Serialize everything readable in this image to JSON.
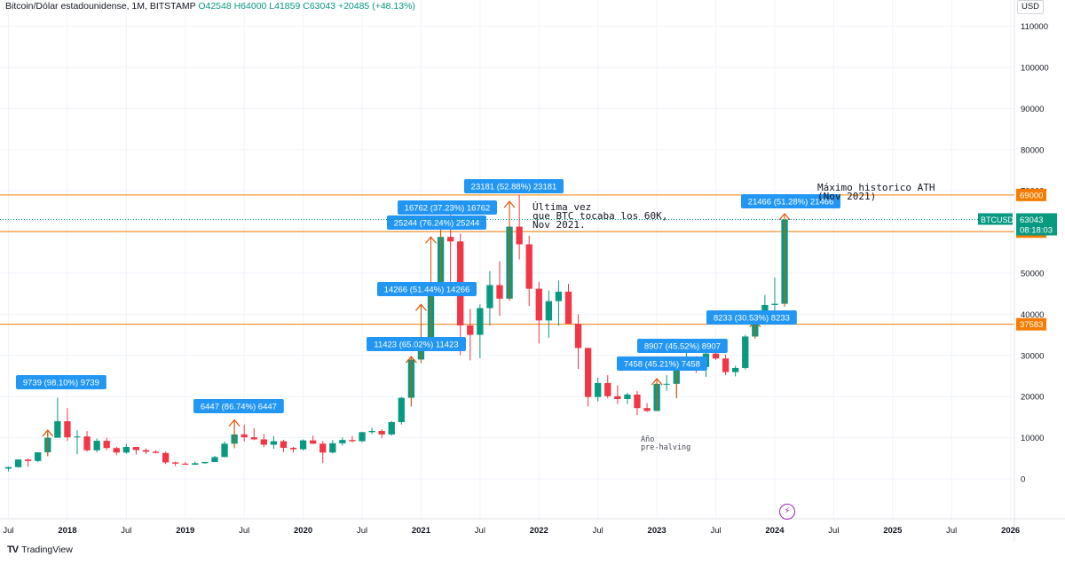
{
  "header": {
    "title": "Bitcoin/Dólar estadounidense, 1M, BITSTAMP",
    "ohlc": "O42548 H64000 L41859 C63043 +20485 (+48.13%)"
  },
  "currency_button": "USD",
  "branding": "TradingView",
  "colors": {
    "up": "#089981",
    "down": "#f23645",
    "label_bg": "#2196f3",
    "level_line": "#f57c00",
    "arrow": "#e65100",
    "price_tag": "#089981"
  },
  "price_tags": {
    "symbol": "BTCUSD",
    "last": "63043",
    "countdown": "08:18:03"
  },
  "icons": {
    "bolt": "lightning-icon"
  },
  "annotations": [
    {
      "id": "note-last-60k",
      "lines": [
        "Última vez",
        "que BTC tocaba los 60K,",
        "Nov 2021."
      ]
    },
    {
      "id": "note-ath",
      "lines": [
        "Máximo historico ATH",
        "(Nov 2021)"
      ]
    },
    {
      "id": "note-prehalving",
      "lines": [
        "Año",
        "pre-halving"
      ]
    }
  ],
  "chart_data": {
    "type": "candlestick",
    "interval": "1M",
    "exchange": "BITSTAMP",
    "y_axis": {
      "ticks": [
        0,
        10000,
        20000,
        30000,
        40000,
        50000,
        60000,
        70000,
        80000,
        90000,
        100000,
        110000
      ],
      "tick_labels": [
        "0",
        "10000",
        "20000",
        "30000",
        "40000",
        "50000",
        "60000",
        "70000",
        "80000",
        "90000",
        "100000",
        "110000"
      ],
      "scale": "linear"
    },
    "x_axis": {
      "tick_labels": [
        "Jul",
        "2018",
        "Jul",
        "2019",
        "Jul",
        "2020",
        "Jul",
        "2021",
        "Jul",
        "2022",
        "Jul",
        "2023",
        "Jul",
        "2024",
        "Jul",
        "2025",
        "Jul",
        "2026"
      ],
      "tick_months": [
        "2017-07",
        "2018-01",
        "2018-07",
        "2019-01",
        "2019-07",
        "2020-01",
        "2020-07",
        "2021-01",
        "2021-07",
        "2022-01",
        "2022-07",
        "2023-01",
        "2023-07",
        "2024-01",
        "2024-07",
        "2025-01",
        "2025-07",
        "2026-01"
      ]
    },
    "horizontal_levels": [
      {
        "price": 69000,
        "label": "69000"
      },
      {
        "price": 60092,
        "label": "60092"
      },
      {
        "price": 37583,
        "label": "37583"
      }
    ],
    "measure_labels": [
      {
        "text": "9739 (98.10%) 9739",
        "month": "2017-11"
      },
      {
        "text": "6447 (86.74%) 6447",
        "month": "2019-06"
      },
      {
        "text": "11423 (65.02%) 11423",
        "month": "2020-12"
      },
      {
        "text": "14266 (51.44%) 14266",
        "month": "2021-01"
      },
      {
        "text": "25244 (76.24%) 25244",
        "month": "2021-02"
      },
      {
        "text": "16762 (37.23%) 16762",
        "month": "2021-03"
      },
      {
        "text": "23181 (52.88%) 23181",
        "month": "2021-10"
      },
      {
        "text": "7458 (45.21%) 7458",
        "month": "2023-01"
      },
      {
        "text": "8907 (45.52%) 8907",
        "month": "2023-03"
      },
      {
        "text": "8233 (30.53%) 8233",
        "month": "2023-11"
      },
      {
        "text": "21466 (51.28%) 21466",
        "month": "2024-02"
      }
    ],
    "candles": [
      {
        "m": "2017-07",
        "o": 2480,
        "h": 2950,
        "l": 1850,
        "c": 2850
      },
      {
        "m": "2017-08",
        "o": 2850,
        "h": 4750,
        "l": 2700,
        "c": 4700
      },
      {
        "m": "2017-09",
        "o": 4700,
        "h": 4950,
        "l": 2970,
        "c": 4350
      },
      {
        "m": "2017-10",
        "o": 4350,
        "h": 6450,
        "l": 4100,
        "c": 6450
      },
      {
        "m": "2017-11",
        "o": 6450,
        "h": 11400,
        "l": 5500,
        "c": 10000
      },
      {
        "m": "2017-12",
        "o": 10000,
        "h": 19666,
        "l": 10000,
        "c": 14000
      },
      {
        "m": "2018-01",
        "o": 14000,
        "h": 17200,
        "l": 9200,
        "c": 10100
      },
      {
        "m": "2018-02",
        "o": 10100,
        "h": 11800,
        "l": 6000,
        "c": 10300
      },
      {
        "m": "2018-03",
        "o": 10300,
        "h": 11600,
        "l": 6600,
        "c": 6950
      },
      {
        "m": "2018-04",
        "o": 6950,
        "h": 9800,
        "l": 6450,
        "c": 9250
      },
      {
        "m": "2018-05",
        "o": 9250,
        "h": 10000,
        "l": 7000,
        "c": 7500
      },
      {
        "m": "2018-06",
        "o": 7500,
        "h": 7800,
        "l": 5750,
        "c": 6400
      },
      {
        "m": "2018-07",
        "o": 6400,
        "h": 8500,
        "l": 6100,
        "c": 7750
      },
      {
        "m": "2018-08",
        "o": 7750,
        "h": 7800,
        "l": 5900,
        "c": 7000
      },
      {
        "m": "2018-09",
        "o": 7000,
        "h": 7400,
        "l": 6100,
        "c": 6600
      },
      {
        "m": "2018-10",
        "o": 6600,
        "h": 7000,
        "l": 6200,
        "c": 6300
      },
      {
        "m": "2018-11",
        "o": 6300,
        "h": 6600,
        "l": 3600,
        "c": 4000
      },
      {
        "m": "2018-12",
        "o": 4000,
        "h": 4200,
        "l": 3100,
        "c": 3700
      },
      {
        "m": "2019-01",
        "o": 3700,
        "h": 4100,
        "l": 3400,
        "c": 3450
      },
      {
        "m": "2019-02",
        "o": 3450,
        "h": 4200,
        "l": 3400,
        "c": 3800
      },
      {
        "m": "2019-03",
        "o": 3800,
        "h": 4100,
        "l": 3700,
        "c": 4100
      },
      {
        "m": "2019-04",
        "o": 4100,
        "h": 5600,
        "l": 4050,
        "c": 5300
      },
      {
        "m": "2019-05",
        "o": 5300,
        "h": 9100,
        "l": 5300,
        "c": 8550
      },
      {
        "m": "2019-06",
        "o": 8550,
        "h": 13880,
        "l": 7450,
        "c": 10800
      },
      {
        "m": "2019-07",
        "o": 10800,
        "h": 13200,
        "l": 9100,
        "c": 10100
      },
      {
        "m": "2019-08",
        "o": 10100,
        "h": 12300,
        "l": 9400,
        "c": 9600
      },
      {
        "m": "2019-09",
        "o": 9600,
        "h": 10900,
        "l": 7700,
        "c": 8300
      },
      {
        "m": "2019-10",
        "o": 8300,
        "h": 10400,
        "l": 7300,
        "c": 9150
      },
      {
        "m": "2019-11",
        "o": 9150,
        "h": 9500,
        "l": 6500,
        "c": 7550
      },
      {
        "m": "2019-12",
        "o": 7550,
        "h": 7750,
        "l": 6400,
        "c": 7200
      },
      {
        "m": "2020-01",
        "o": 7200,
        "h": 9600,
        "l": 6850,
        "c": 9350
      },
      {
        "m": "2020-02",
        "o": 9350,
        "h": 10500,
        "l": 8450,
        "c": 8550
      },
      {
        "m": "2020-03",
        "o": 8550,
        "h": 9200,
        "l": 3850,
        "c": 6400
      },
      {
        "m": "2020-04",
        "o": 6400,
        "h": 9450,
        "l": 6150,
        "c": 8650
      },
      {
        "m": "2020-05",
        "o": 8650,
        "h": 10070,
        "l": 8100,
        "c": 9450
      },
      {
        "m": "2020-06",
        "o": 9450,
        "h": 10400,
        "l": 8900,
        "c": 9150
      },
      {
        "m": "2020-07",
        "o": 9150,
        "h": 11450,
        "l": 8950,
        "c": 11350
      },
      {
        "m": "2020-08",
        "o": 11350,
        "h": 12450,
        "l": 10900,
        "c": 11650
      },
      {
        "m": "2020-09",
        "o": 11650,
        "h": 12050,
        "l": 9900,
        "c": 10800
      },
      {
        "m": "2020-10",
        "o": 10800,
        "h": 14100,
        "l": 10500,
        "c": 13800
      },
      {
        "m": "2020-11",
        "o": 13800,
        "h": 19900,
        "l": 13200,
        "c": 19700
      },
      {
        "m": "2020-12",
        "o": 19700,
        "h": 29300,
        "l": 17600,
        "c": 29000
      },
      {
        "m": "2021-01",
        "o": 29000,
        "h": 41950,
        "l": 28100,
        "c": 33100
      },
      {
        "m": "2021-02",
        "o": 33100,
        "h": 58350,
        "l": 32300,
        "c": 45200
      },
      {
        "m": "2021-03",
        "o": 45200,
        "h": 61800,
        "l": 44900,
        "c": 58800
      },
      {
        "m": "2021-04",
        "o": 58800,
        "h": 64900,
        "l": 47000,
        "c": 57700
      },
      {
        "m": "2021-05",
        "o": 57700,
        "h": 59600,
        "l": 30000,
        "c": 37300
      },
      {
        "m": "2021-06",
        "o": 37300,
        "h": 41300,
        "l": 28800,
        "c": 35000
      },
      {
        "m": "2021-07",
        "o": 35000,
        "h": 42400,
        "l": 29300,
        "c": 41500
      },
      {
        "m": "2021-08",
        "o": 41500,
        "h": 50500,
        "l": 37300,
        "c": 47100
      },
      {
        "m": "2021-09",
        "o": 47100,
        "h": 52900,
        "l": 39600,
        "c": 43800
      },
      {
        "m": "2021-10",
        "o": 43800,
        "h": 67000,
        "l": 43300,
        "c": 61300
      },
      {
        "m": "2021-11",
        "o": 61300,
        "h": 69000,
        "l": 53300,
        "c": 57000
      },
      {
        "m": "2021-12",
        "o": 57000,
        "h": 59100,
        "l": 42000,
        "c": 46200
      },
      {
        "m": "2022-01",
        "o": 46200,
        "h": 47900,
        "l": 32900,
        "c": 38500
      },
      {
        "m": "2022-02",
        "o": 38500,
        "h": 45800,
        "l": 34300,
        "c": 43200
      },
      {
        "m": "2022-03",
        "o": 43200,
        "h": 48200,
        "l": 37200,
        "c": 45500
      },
      {
        "m": "2022-04",
        "o": 45500,
        "h": 47400,
        "l": 37700,
        "c": 37700
      },
      {
        "m": "2022-05",
        "o": 37700,
        "h": 40000,
        "l": 26700,
        "c": 31800
      },
      {
        "m": "2022-06",
        "o": 31800,
        "h": 31900,
        "l": 17600,
        "c": 19900
      },
      {
        "m": "2022-07",
        "o": 19900,
        "h": 24600,
        "l": 18800,
        "c": 23300
      },
      {
        "m": "2022-08",
        "o": 23300,
        "h": 25200,
        "l": 19600,
        "c": 20100
      },
      {
        "m": "2022-09",
        "o": 20100,
        "h": 22700,
        "l": 18200,
        "c": 19400
      },
      {
        "m": "2022-10",
        "o": 19400,
        "h": 20900,
        "l": 18200,
        "c": 20500
      },
      {
        "m": "2022-11",
        "o": 20500,
        "h": 21400,
        "l": 15500,
        "c": 17200
      },
      {
        "m": "2022-12",
        "o": 17200,
        "h": 18400,
        "l": 16300,
        "c": 16500
      },
      {
        "m": "2023-01",
        "o": 16500,
        "h": 23900,
        "l": 16500,
        "c": 23100
      },
      {
        "m": "2023-02",
        "o": 23100,
        "h": 25200,
        "l": 21400,
        "c": 23100
      },
      {
        "m": "2023-03",
        "o": 23100,
        "h": 29200,
        "l": 19600,
        "c": 28450
      },
      {
        "m": "2023-04",
        "o": 28450,
        "h": 31000,
        "l": 26900,
        "c": 29250
      },
      {
        "m": "2023-05",
        "o": 29250,
        "h": 29800,
        "l": 25800,
        "c": 27200
      },
      {
        "m": "2023-06",
        "o": 27200,
        "h": 31400,
        "l": 24800,
        "c": 30450
      },
      {
        "m": "2023-07",
        "o": 30450,
        "h": 31800,
        "l": 28900,
        "c": 29250
      },
      {
        "m": "2023-08",
        "o": 29250,
        "h": 30200,
        "l": 25200,
        "c": 25950
      },
      {
        "m": "2023-09",
        "o": 25950,
        "h": 27500,
        "l": 24900,
        "c": 26950
      },
      {
        "m": "2023-10",
        "o": 26950,
        "h": 35000,
        "l": 26600,
        "c": 34600
      },
      {
        "m": "2023-11",
        "o": 34600,
        "h": 38000,
        "l": 34100,
        "c": 37700
      },
      {
        "m": "2023-12",
        "o": 37700,
        "h": 44700,
        "l": 37600,
        "c": 42250
      },
      {
        "m": "2024-01",
        "o": 42250,
        "h": 48950,
        "l": 38500,
        "c": 42550
      },
      {
        "m": "2024-02",
        "o": 42548,
        "h": 64000,
        "l": 41859,
        "c": 63043
      }
    ]
  }
}
